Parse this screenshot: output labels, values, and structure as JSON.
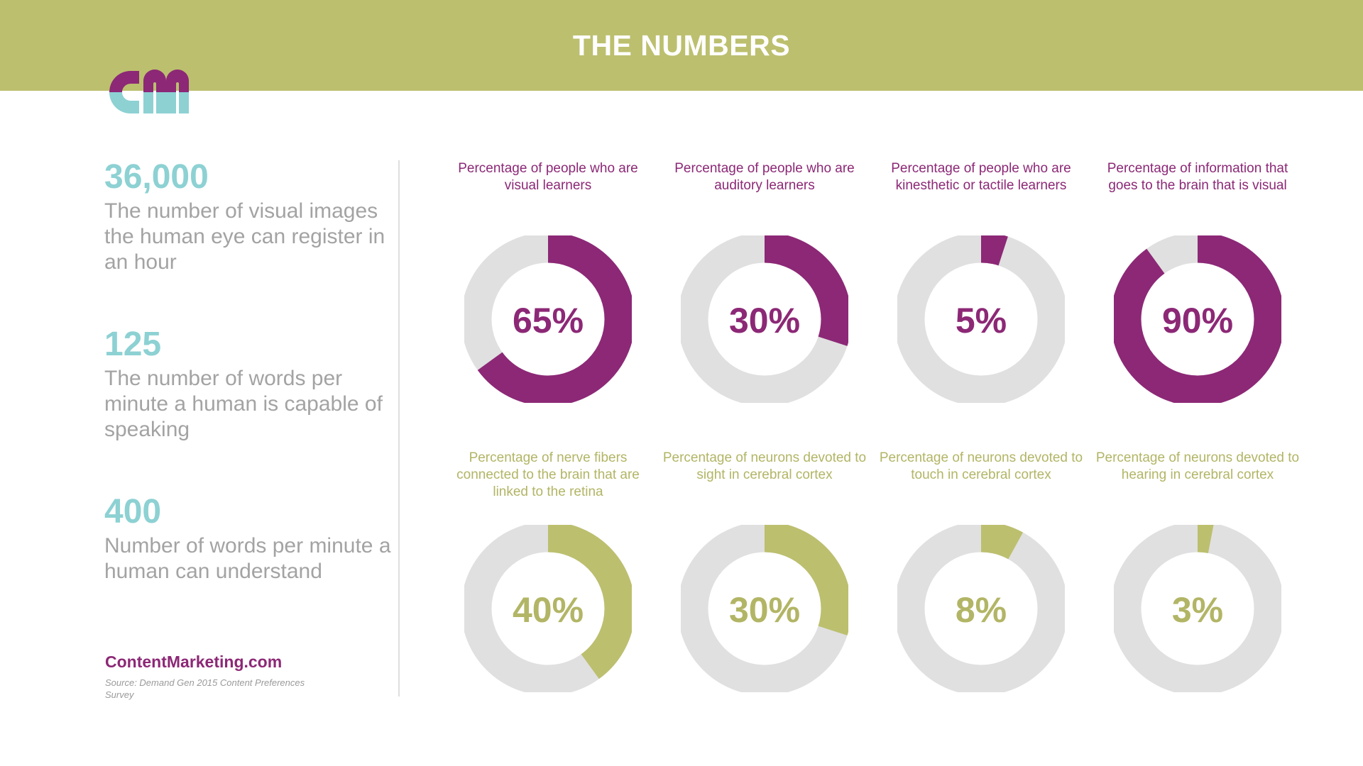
{
  "header": {
    "title": "THE NUMBERS"
  },
  "logo": {
    "text": "cm",
    "colors": {
      "top": "#8c2876",
      "bottom": "#8dd1d3"
    }
  },
  "stats": [
    {
      "number": "36,000",
      "description": "The number of visual images the human eye can register in an hour"
    },
    {
      "number": "125",
      "description": "The number of words per minute a human is capable of speaking"
    },
    {
      "number": "400",
      "description": "Number of words per minute a human can understand"
    }
  ],
  "footer": {
    "brand": "ContentMarketing.com",
    "source": "Source: Demand Gen 2015 Content Preferences Survey"
  },
  "colors": {
    "header": "#bcbf6e",
    "purple": "#8c2876",
    "olive": "#bcbf6e",
    "track": "#e0e0e0",
    "teal": "#8dd1d3",
    "gray_text": "#a3a3a3"
  },
  "chart_data": [
    {
      "type": "pie",
      "title": "Percentage of people who are visual learners",
      "values": [
        65,
        35
      ],
      "label": "65%",
      "color": "purple"
    },
    {
      "type": "pie",
      "title": "Percentage of people who are auditory learners",
      "values": [
        30,
        70
      ],
      "label": "30%",
      "color": "purple"
    },
    {
      "type": "pie",
      "title": "Percentage of people who are kinesthetic or tactile learners",
      "values": [
        5,
        95
      ],
      "label": "5%",
      "color": "purple"
    },
    {
      "type": "pie",
      "title": "Percentage of information that goes to the brain that is visual",
      "values": [
        90,
        10
      ],
      "label": "90%",
      "color": "purple"
    },
    {
      "type": "pie",
      "title": "Percentage of nerve fibers connected to the brain that are linked to the retina",
      "values": [
        40,
        60
      ],
      "label": "40%",
      "color": "olive"
    },
    {
      "type": "pie",
      "title": "Percentage of neurons devoted to sight in cerebral cortex",
      "values": [
        30,
        70
      ],
      "label": "30%",
      "color": "olive"
    },
    {
      "type": "pie",
      "title": "Percentage of neurons devoted to touch in cerebral cortex",
      "values": [
        8,
        92
      ],
      "label": "8%",
      "color": "olive"
    },
    {
      "type": "pie",
      "title": "Percentage of neurons devoted to hearing in cerebral cortex",
      "values": [
        3,
        97
      ],
      "label": "3%",
      "color": "olive"
    }
  ]
}
